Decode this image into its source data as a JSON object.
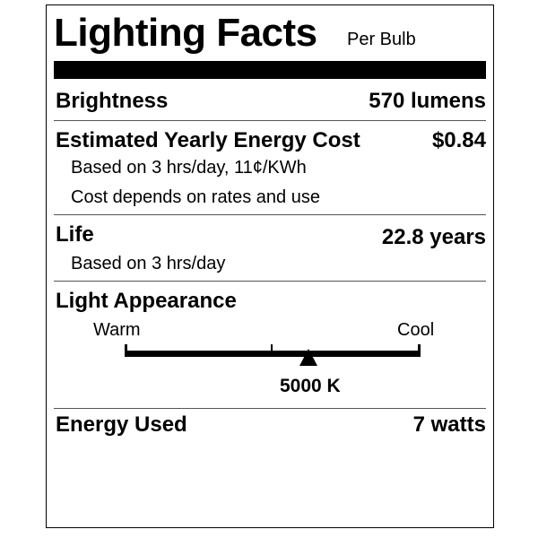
{
  "title": "Lighting Facts",
  "subtitle": "Per Bulb",
  "brightness": {
    "label": "Brightness",
    "value": "570 lumens"
  },
  "energy_cost": {
    "label": "Estimated Yearly Energy Cost",
    "value": "$0.84",
    "notes": [
      "Based on 3 hrs/day, 11¢/KWh",
      "Cost depends on rates and use"
    ]
  },
  "life": {
    "label": "Life",
    "value": "22.8 years",
    "note": "Based on 3 hrs/day"
  },
  "appearance": {
    "label": "Light Appearance",
    "warm": "Warm",
    "cool": "Cool",
    "value": "5000 K",
    "position": 0.62
  },
  "energy_used": {
    "label": "Energy Used",
    "value": "7 watts"
  }
}
